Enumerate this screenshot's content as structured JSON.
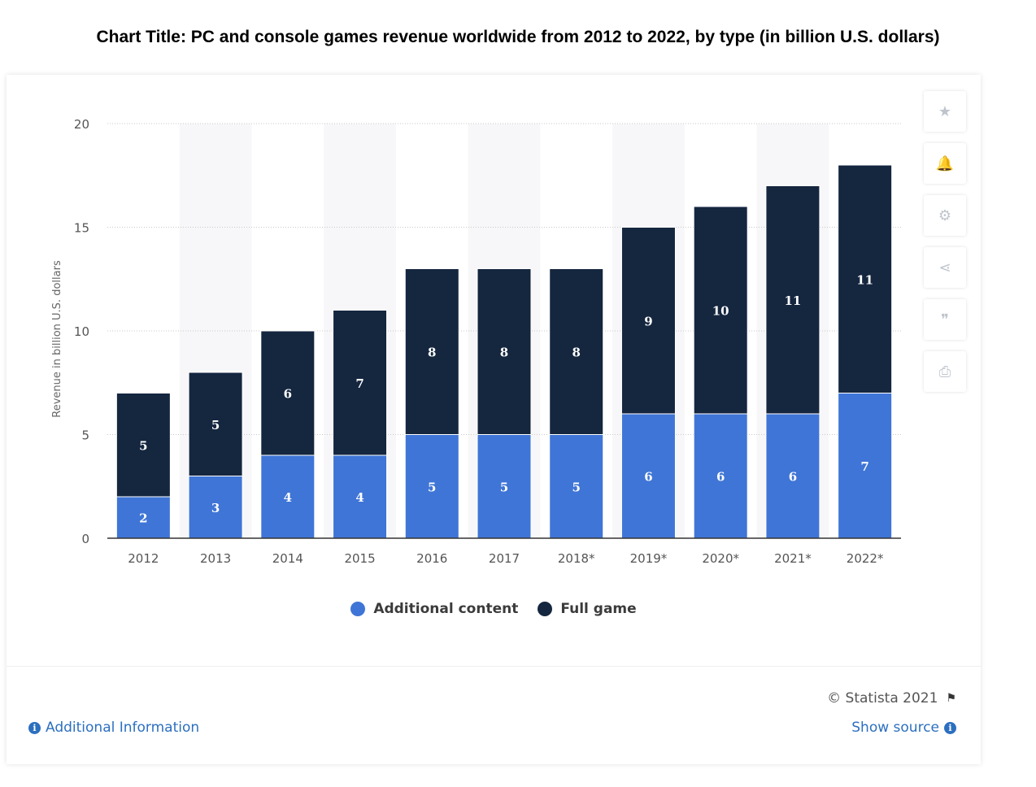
{
  "page_title": "Chart Title: PC and console games revenue worldwide from 2012 to 2022, by type (in billion U.S. dollars)",
  "chart_data": {
    "type": "bar",
    "stacked": true,
    "categories": [
      "2012",
      "2013",
      "2014",
      "2015",
      "2016",
      "2017",
      "2018*",
      "2019*",
      "2020*",
      "2021*",
      "2022*"
    ],
    "series": [
      {
        "name": "Additional content",
        "values": [
          2,
          3,
          4,
          4,
          5,
          5,
          5,
          6,
          6,
          6,
          7
        ],
        "color": "#3f75d6"
      },
      {
        "name": "Full game",
        "values": [
          5,
          5,
          6,
          7,
          8,
          8,
          8,
          9,
          10,
          11,
          11
        ],
        "color": "#15263f"
      }
    ],
    "ylabel": "Revenue in billion U.S. dollars",
    "ylim": [
      0,
      20
    ],
    "yticks": [
      0,
      5,
      10,
      15,
      20
    ],
    "grid": true,
    "alternating_band_color": "#f7f7f9",
    "legend_position": "bottom"
  },
  "toolbar": [
    {
      "name": "star-icon",
      "glyph": "★"
    },
    {
      "name": "bell-icon",
      "glyph": "🔔"
    },
    {
      "name": "gear-icon",
      "glyph": "⚙"
    },
    {
      "name": "share-icon",
      "glyph": "⋖"
    },
    {
      "name": "quote-icon",
      "glyph": "❞"
    },
    {
      "name": "print-icon",
      "glyph": "⎙"
    }
  ],
  "footer": {
    "credit": "© Statista 2021",
    "show_source": "Show source",
    "additional_info": "Additional Information"
  }
}
